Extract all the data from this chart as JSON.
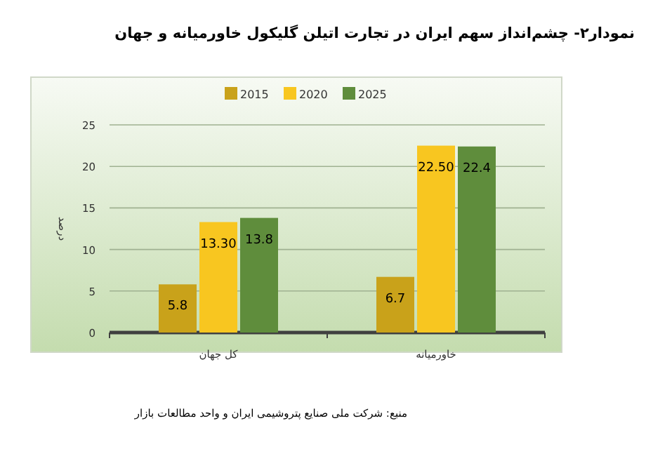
{
  "chart_data": {
    "type": "bar",
    "title": "نمودار۲- چشم‌انداز سهم ایران در تجارت اتیلن گلیکول خاورمیانه و جهان",
    "ylabel": "درصد",
    "categories": [
      "کل جهان",
      "خاورمیانه"
    ],
    "series": [
      {
        "name": "2015",
        "color": "#c9a21a",
        "values": [
          5.8,
          6.7
        ],
        "value_labels": [
          "5.8",
          "6.7"
        ]
      },
      {
        "name": "2020",
        "color": "#f8c620",
        "values": [
          13.3,
          22.5
        ],
        "value_labels": [
          "13.30",
          "22.50"
        ]
      },
      {
        "name": "2025",
        "color": "#5f8d3c",
        "values": [
          13.8,
          22.4
        ],
        "value_labels": [
          "13.8",
          "22.4"
        ]
      }
    ],
    "ylim": [
      0,
      25
    ],
    "yticks": [
      0,
      5,
      10,
      15,
      20,
      25
    ],
    "grid": "y",
    "legend": "top",
    "annotations": [
      "منبع: شرکت ملی صنایع پتروشیمی ایران و واحد مطالعات بازار"
    ]
  }
}
